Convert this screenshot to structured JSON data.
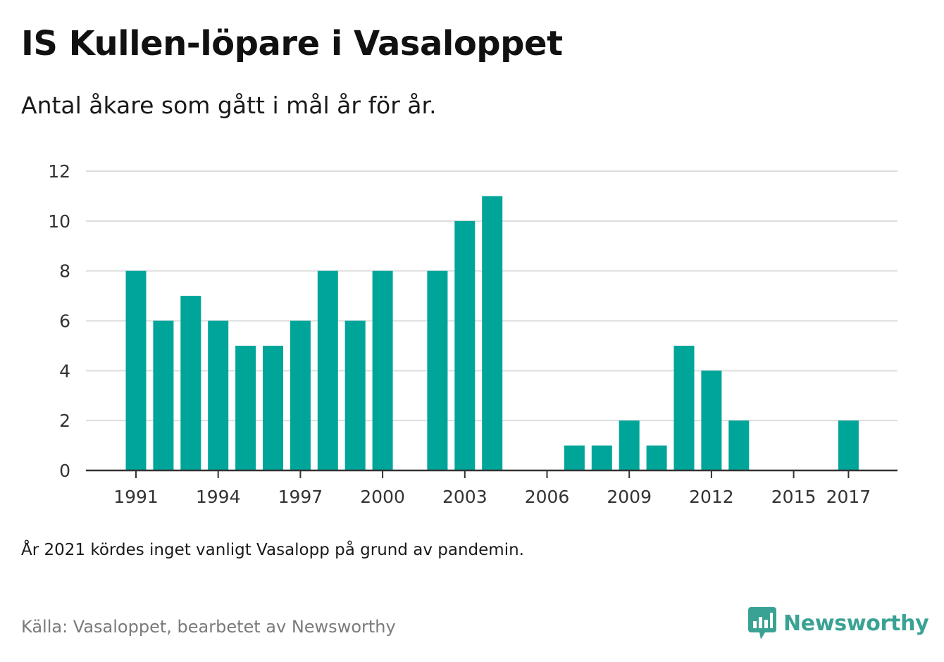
{
  "title": "IS Kullen-löpare i Vasaloppet",
  "subtitle": "Antal åkare som gått i mål år för år.",
  "note": "År 2021 kördes inget vanligt Vasalopp på grund av pandemin.",
  "source": "Källa: Vasaloppet, bearbetet av Newsworthy",
  "brand": {
    "name": "Newsworthy",
    "icon": "newsworthy-logo-icon",
    "color": "#3aa294"
  },
  "colors": {
    "bar": "#00a59a",
    "grid": "#dddddd",
    "axis": "#333333"
  },
  "chart_data": {
    "type": "bar",
    "x": [
      1991,
      1992,
      1993,
      1994,
      1995,
      1996,
      1997,
      1998,
      1999,
      2000,
      2001,
      2002,
      2003,
      2004,
      2005,
      2006,
      2007,
      2008,
      2009,
      2010,
      2011,
      2012,
      2013,
      2014,
      2015,
      2016,
      2017
    ],
    "values": [
      8,
      6,
      7,
      6,
      5,
      5,
      6,
      8,
      6,
      8,
      0,
      8,
      10,
      11,
      0,
      0,
      1,
      1,
      2,
      1,
      5,
      4,
      2,
      0,
      0,
      0,
      2
    ],
    "xticks": [
      "1991",
      "1994",
      "1997",
      "2000",
      "2003",
      "2006",
      "2009",
      "2012",
      "2015",
      "2017"
    ],
    "yticks": [
      "0",
      "2",
      "4",
      "6",
      "8",
      "10",
      "12"
    ],
    "ylim": [
      0,
      12
    ],
    "grid": true,
    "legend": "none"
  }
}
